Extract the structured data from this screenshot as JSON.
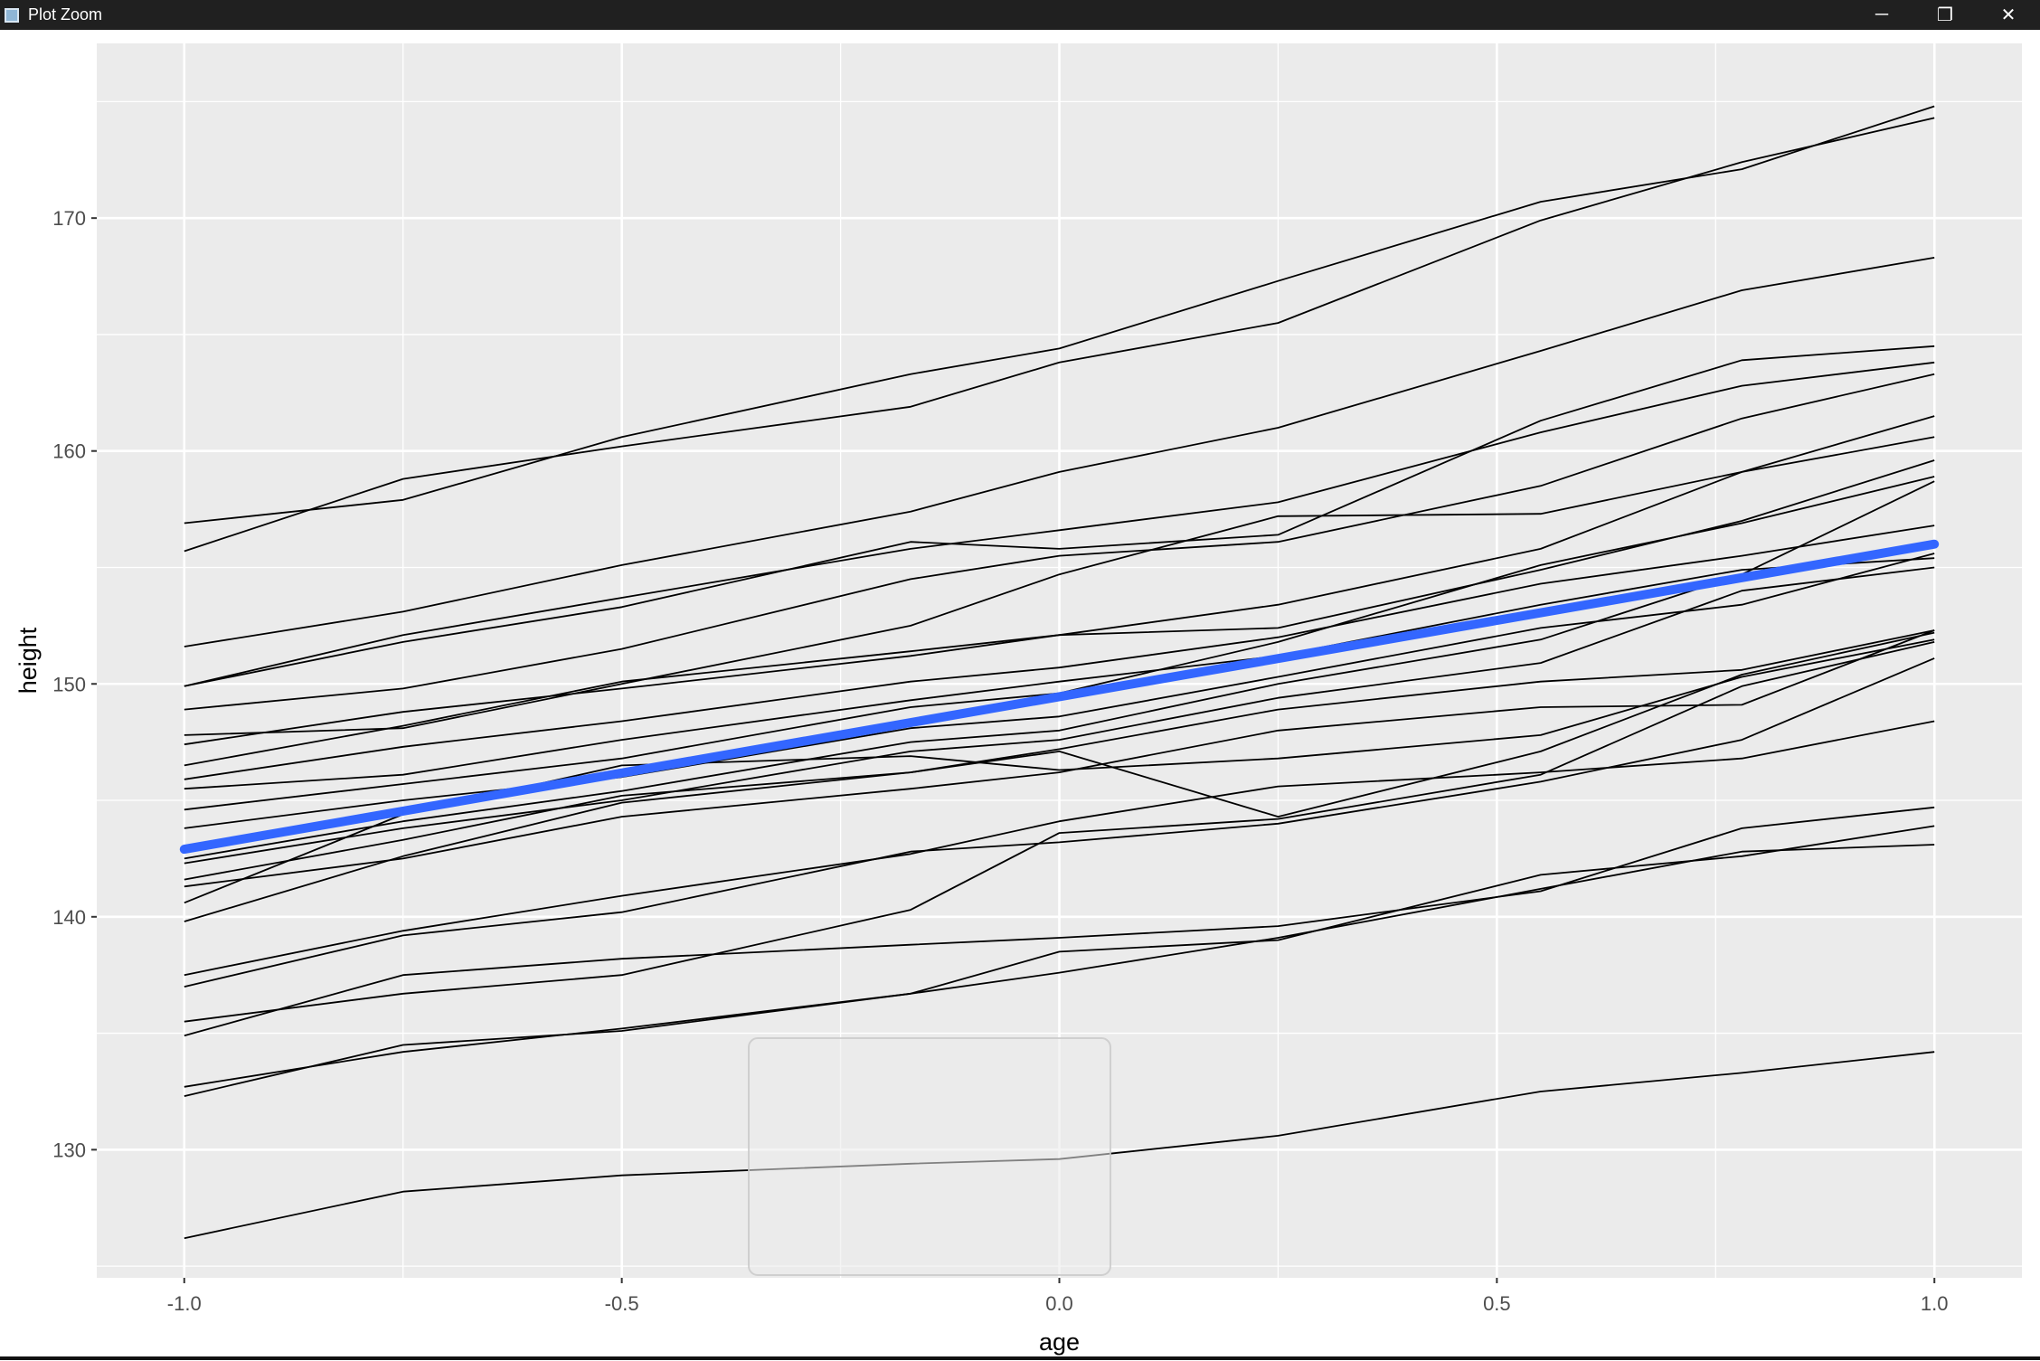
{
  "window": {
    "title": "Plot Zoom",
    "controls": {
      "minimize": "─",
      "restore": "❐",
      "close": "✕"
    }
  },
  "chart_data": {
    "type": "line",
    "xlabel": "age",
    "ylabel": "height",
    "xlim": [
      -1.1,
      1.1
    ],
    "ylim": [
      124.5,
      177.5
    ],
    "x_ticks": [
      -1.0,
      -0.5,
      0.0,
      0.5,
      1.0
    ],
    "x_tick_labels": [
      "-1.0",
      "-0.5",
      "0.0",
      "0.5",
      "1.0"
    ],
    "y_ticks": [
      130,
      140,
      150,
      160,
      170
    ],
    "y_tick_labels": [
      "130",
      "140",
      "150",
      "160",
      "170"
    ],
    "x": [
      -1.0,
      -0.75,
      -0.5,
      -0.17,
      0.0,
      0.25,
      0.55,
      0.78,
      1.0
    ],
    "background": "#ebebeb",
    "grid_color": "#ffffff",
    "line_color": "#000000",
    "series": [
      {
        "values": [
          156.9,
          157.9,
          160.6,
          163.3,
          164.4,
          167.3,
          170.7,
          172.1,
          174.8
        ]
      },
      {
        "values": [
          155.7,
          158.8,
          160.2,
          161.9,
          163.8,
          165.5,
          169.9,
          172.4,
          174.3
        ]
      },
      {
        "values": [
          151.6,
          153.1,
          155.1,
          157.4,
          159.1,
          161.0,
          164.3,
          166.9,
          168.3
        ]
      },
      {
        "values": [
          149.9,
          152.1,
          153.7,
          155.8,
          156.6,
          157.8,
          160.8,
          162.8,
          163.8
        ]
      },
      {
        "values": [
          149.9,
          151.8,
          153.3,
          156.1,
          155.8,
          156.4,
          161.3,
          163.9,
          164.5
        ]
      },
      {
        "values": [
          148.9,
          149.8,
          151.5,
          154.5,
          155.5,
          156.1,
          158.5,
          161.4,
          163.3
        ]
      },
      {
        "values": [
          147.8,
          148.1,
          150.0,
          152.5,
          154.7,
          157.2,
          157.3,
          159.1,
          160.6
        ]
      },
      {
        "values": [
          147.4,
          148.8,
          149.8,
          151.2,
          152.1,
          152.4,
          154.9,
          157.0,
          159.6
        ]
      },
      {
        "values": [
          146.5,
          148.2,
          150.1,
          151.4,
          152.1,
          153.4,
          155.8,
          159.1,
          161.5
        ]
      },
      {
        "values": [
          145.9,
          147.3,
          148.4,
          150.1,
          150.7,
          152.0,
          154.3,
          155.5,
          156.8
        ]
      },
      {
        "values": [
          145.5,
          146.1,
          147.6,
          149.3,
          150.1,
          151.2,
          153.4,
          154.9,
          155.4
        ]
      },
      {
        "values": [
          144.6,
          145.7,
          146.8,
          149.0,
          149.6,
          151.8,
          155.1,
          156.9,
          158.9
        ]
      },
      {
        "values": [
          143.8,
          145.0,
          146.0,
          148.1,
          148.6,
          150.3,
          152.4,
          153.4,
          155.6
        ]
      },
      {
        "values": [
          142.5,
          144.1,
          145.4,
          147.5,
          148.0,
          150.0,
          151.9,
          154.7,
          158.7
        ]
      },
      {
        "values": [
          142.3,
          143.8,
          145.0,
          147.1,
          147.6,
          149.4,
          150.9,
          154.0,
          155.0
        ]
      },
      {
        "values": [
          141.6,
          143.3,
          145.2,
          146.2,
          147.2,
          148.9,
          150.1,
          150.6,
          152.3
        ]
      },
      {
        "values": [
          141.3,
          142.5,
          144.3,
          145.5,
          146.2,
          148.0,
          149.0,
          149.1,
          152.3
        ]
      },
      {
        "values": [
          140.6,
          144.4,
          146.5,
          146.9,
          146.3,
          146.8,
          147.8,
          150.3,
          151.9
        ]
      },
      {
        "values": [
          139.8,
          142.6,
          144.9,
          146.2,
          147.1,
          144.3,
          147.1,
          150.4,
          152.2
        ]
      },
      {
        "values": [
          137.5,
          139.4,
          140.9,
          142.7,
          144.1,
          145.6,
          146.2,
          146.8,
          148.4
        ]
      },
      {
        "values": [
          137.0,
          139.2,
          140.2,
          142.8,
          143.2,
          144.0,
          145.8,
          147.6,
          151.1
        ]
      },
      {
        "values": [
          135.5,
          136.7,
          137.5,
          140.3,
          143.6,
          144.2,
          146.1,
          149.9,
          151.8
        ]
      },
      {
        "values": [
          134.9,
          137.5,
          138.2,
          138.8,
          139.1,
          139.6,
          141.1,
          143.8,
          144.7
        ]
      },
      {
        "values": [
          132.7,
          134.2,
          135.2,
          136.7,
          137.6,
          139.1,
          141.2,
          142.8,
          143.1
        ]
      },
      {
        "values": [
          132.3,
          134.5,
          135.1,
          136.7,
          138.5,
          139.0,
          141.8,
          142.6,
          143.9
        ]
      },
      {
        "values": [
          126.2,
          128.2,
          128.9,
          129.4,
          129.6,
          130.6,
          132.5,
          133.3,
          134.2
        ]
      }
    ],
    "smooth": {
      "color": "#3366ff",
      "x": [
        -1.0,
        1.0
      ],
      "y": [
        142.9,
        156.0
      ]
    }
  }
}
